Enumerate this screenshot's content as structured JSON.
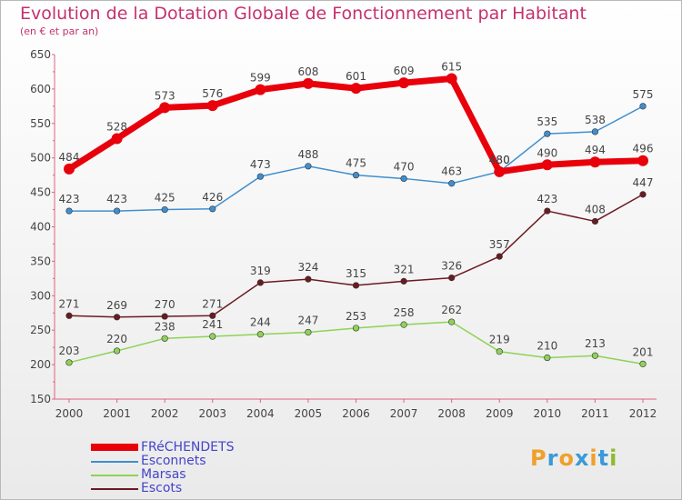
{
  "chart_data": {
    "type": "line",
    "title": "Evolution de la Dotation Globale de Fonctionnement par Habitant",
    "subtitle": "(en € et par an)",
    "xlabel": "",
    "ylabel": "",
    "categories": [
      "2000",
      "2001",
      "2002",
      "2003",
      "2004",
      "2005",
      "2006",
      "2007",
      "2008",
      "2009",
      "2010",
      "2011",
      "2012"
    ],
    "ylim": [
      150,
      650
    ],
    "yticks": [
      150,
      200,
      250,
      300,
      350,
      400,
      450,
      500,
      550,
      600,
      650
    ],
    "grid": false,
    "legend_position": "bottom-left",
    "series": [
      {
        "name": "FRéCHENDETS",
        "color": "#e8000b",
        "emphasis": true,
        "values": [
          484,
          528,
          573,
          576,
          599,
          608,
          601,
          609,
          615,
          480,
          490,
          494,
          496
        ],
        "labels": [
          "484",
          "528",
          "573",
          "576",
          "599",
          "608",
          "601",
          "609",
          "615",
          "480",
          "490",
          "494",
          "496"
        ]
      },
      {
        "name": "Esconnets",
        "color": "#3f8fd0",
        "emphasis": false,
        "values": [
          423,
          423,
          425,
          426,
          473,
          488,
          475,
          470,
          463,
          480,
          535,
          538,
          575
        ],
        "labels": [
          "423",
          "423",
          "425",
          "426",
          "473",
          "488",
          "475",
          "470",
          "463",
          "480",
          "535",
          "538",
          "575"
        ]
      },
      {
        "name": "Marsas",
        "color": "#8ed257",
        "emphasis": false,
        "values": [
          203,
          220,
          238,
          241,
          244,
          247,
          253,
          258,
          262,
          219,
          210,
          213,
          201
        ],
        "labels": [
          "203",
          "220",
          "238",
          "241",
          "244",
          "247",
          "253",
          "258",
          "262",
          "219",
          "210",
          "213",
          "201"
        ]
      },
      {
        "name": "Escots",
        "color": "#6b1a22",
        "emphasis": false,
        "values": [
          271,
          269,
          270,
          271,
          319,
          324,
          315,
          321,
          326,
          357,
          423,
          408,
          447
        ],
        "labels": [
          "271",
          "269",
          "270",
          "271",
          "319",
          "324",
          "315",
          "321",
          "326",
          "357",
          "423",
          "408",
          "447"
        ]
      }
    ]
  },
  "logo": {
    "letters": [
      "P",
      "r",
      "o",
      "x",
      "i",
      "t",
      "i"
    ],
    "colors": [
      "#f0a02a",
      "#3a9ad9",
      "#f0a02a",
      "#3a9ad9",
      "#f0a02a",
      "#3a9ad9",
      "#8dbb2c"
    ]
  }
}
